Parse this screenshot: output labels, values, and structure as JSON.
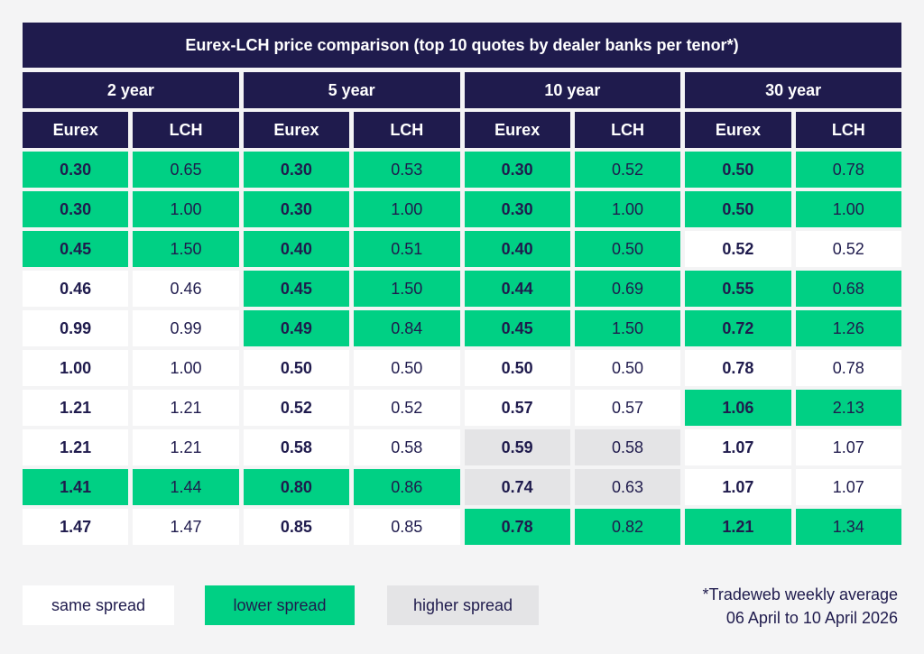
{
  "colors": {
    "header": "#1f1b4d",
    "same_spread": "#ffffff",
    "lower_spread": "#00d084",
    "higher_spread": "#e4e4e6"
  },
  "chart_data": {
    "type": "table",
    "title": "Eurex-LCH price comparison (top 10 quotes by dealer banks per tenor*)",
    "tenors": [
      "2 year",
      "5 year",
      "10 year",
      "30 year"
    ],
    "sub_columns": [
      "Eurex",
      "LCH"
    ],
    "rows": [
      [
        [
          "0.30",
          "0.65",
          "lower"
        ],
        [
          "0.30",
          "0.53",
          "lower"
        ],
        [
          "0.30",
          "0.52",
          "lower"
        ],
        [
          "0.50",
          "0.78",
          "lower"
        ]
      ],
      [
        [
          "0.30",
          "1.00",
          "lower"
        ],
        [
          "0.30",
          "1.00",
          "lower"
        ],
        [
          "0.30",
          "1.00",
          "lower"
        ],
        [
          "0.50",
          "1.00",
          "lower"
        ]
      ],
      [
        [
          "0.45",
          "1.50",
          "lower"
        ],
        [
          "0.40",
          "0.51",
          "lower"
        ],
        [
          "0.40",
          "0.50",
          "lower"
        ],
        [
          "0.52",
          "0.52",
          "same"
        ]
      ],
      [
        [
          "0.46",
          "0.46",
          "same"
        ],
        [
          "0.45",
          "1.50",
          "lower"
        ],
        [
          "0.44",
          "0.69",
          "lower"
        ],
        [
          "0.55",
          "0.68",
          "lower"
        ]
      ],
      [
        [
          "0.99",
          "0.99",
          "same"
        ],
        [
          "0.49",
          "0.84",
          "lower"
        ],
        [
          "0.45",
          "1.50",
          "lower"
        ],
        [
          "0.72",
          "1.26",
          "lower"
        ]
      ],
      [
        [
          "1.00",
          "1.00",
          "same"
        ],
        [
          "0.50",
          "0.50",
          "same"
        ],
        [
          "0.50",
          "0.50",
          "same"
        ],
        [
          "0.78",
          "0.78",
          "same"
        ]
      ],
      [
        [
          "1.21",
          "1.21",
          "same"
        ],
        [
          "0.52",
          "0.52",
          "same"
        ],
        [
          "0.57",
          "0.57",
          "same"
        ],
        [
          "1.06",
          "2.13",
          "lower"
        ]
      ],
      [
        [
          "1.21",
          "1.21",
          "same"
        ],
        [
          "0.58",
          "0.58",
          "same"
        ],
        [
          "0.59",
          "0.58",
          "higher"
        ],
        [
          "1.07",
          "1.07",
          "same"
        ]
      ],
      [
        [
          "1.41",
          "1.44",
          "lower"
        ],
        [
          "0.80",
          "0.86",
          "lower"
        ],
        [
          "0.74",
          "0.63",
          "higher"
        ],
        [
          "1.07",
          "1.07",
          "same"
        ]
      ],
      [
        [
          "1.47",
          "1.47",
          "same"
        ],
        [
          "0.85",
          "0.85",
          "same"
        ],
        [
          "0.78",
          "0.82",
          "lower"
        ],
        [
          "1.21",
          "1.34",
          "lower"
        ]
      ]
    ],
    "legend": {
      "same": "same spread",
      "lower": "lower spread",
      "higher": "higher spread"
    }
  },
  "footnote": {
    "line1": "*Tradeweb weekly average",
    "line2": "06 April to 10 April 2026"
  }
}
